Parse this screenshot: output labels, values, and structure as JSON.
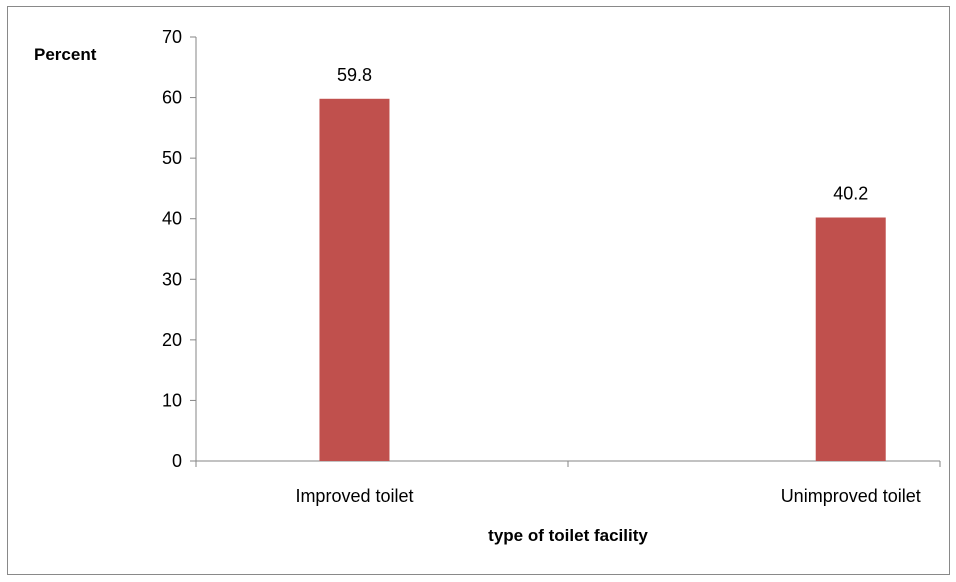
{
  "chart_data": {
    "type": "bar",
    "categories": [
      "Improved toilet",
      "Unimproved toilet"
    ],
    "values": [
      59.8,
      40.2
    ],
    "value_labels": [
      "59.8",
      "40.2"
    ],
    "xlabel": "type of toilet facility",
    "ylabel": "Percent",
    "ylim": [
      0,
      70
    ],
    "yticks": [
      0,
      10,
      20,
      30,
      40,
      50,
      60,
      70
    ],
    "grid": false,
    "legend": "none",
    "bar_color": "#C0504D",
    "axis_color": "#868686"
  }
}
